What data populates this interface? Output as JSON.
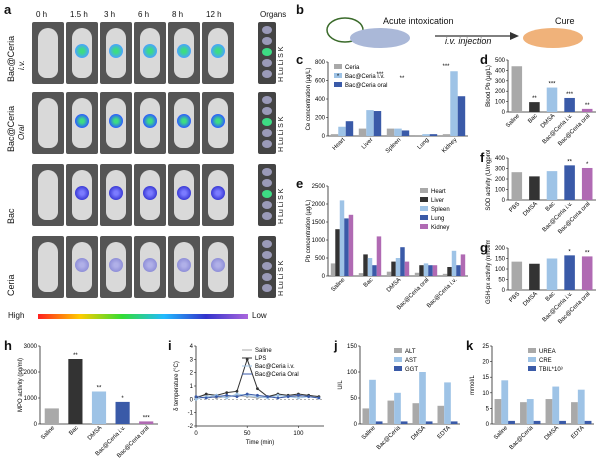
{
  "figure": {
    "panels": {
      "a": "a",
      "b": "b",
      "c": "c",
      "d": "d",
      "e": "e",
      "f": "f",
      "g": "g",
      "h": "h",
      "i": "i",
      "j": "j",
      "k": "k"
    },
    "panel_a": {
      "time_labels": [
        "0 h",
        "1.5 h",
        "3 h",
        "6 h",
        "8 h",
        "12 h",
        "Organs"
      ],
      "row_labels": [
        {
          "line1": "Bac@Ceria",
          "line2": "i.v."
        },
        {
          "line1": "Bac@Ceria",
          "line2": "Oral"
        },
        {
          "line1": "Bac",
          "line2": ""
        },
        {
          "line1": "Ceria",
          "line2": ""
        }
      ],
      "organ_labels": "H Lu Li S K",
      "scale_high": "High",
      "scale_low": "Low"
    },
    "panel_b": {
      "acute": "Acute intoxication",
      "iv": "i.v. injection",
      "cure": "Cure"
    }
  },
  "chart_data": [
    {
      "id": "c",
      "type": "bar",
      "ylabel": "Ce concentration (µg/L)",
      "ylim": [
        0,
        800
      ],
      "yticks": [
        0,
        200,
        400,
        600,
        800
      ],
      "categories": [
        "Heart",
        "Liver",
        "Spleen",
        "Lung",
        "Kidney"
      ],
      "series": [
        {
          "name": "Ceria",
          "values": [
            20,
            80,
            80,
            10,
            20
          ]
        },
        {
          "name": "Bac@Ceria i.v.",
          "values": [
            100,
            280,
            80,
            20,
            700
          ]
        },
        {
          "name": "Bac@Ceria oral",
          "values": [
            160,
            270,
            60,
            20,
            430
          ]
        }
      ],
      "colors": [
        "#a9a9a9",
        "#9ec3e6",
        "#3a5aa8"
      ],
      "annotations": [
        "*",
        "***",
        "**",
        "***"
      ]
    },
    {
      "id": "d",
      "type": "bar",
      "ylabel": "Blood Pb (µg/L)",
      "ylim": [
        0,
        500
      ],
      "yticks": [
        0,
        100,
        200,
        300,
        400,
        500
      ],
      "categories": [
        "Saline",
        "Bac",
        "DMSA",
        "Bac@Ceria i.v.",
        "Bac@Ceria oral"
      ],
      "values": [
        440,
        95,
        235,
        135,
        30
      ],
      "colors": [
        "#a9a9a9",
        "#333333",
        "#9ec3e6",
        "#3a5aa8",
        "#b06ab3"
      ],
      "annotations": [
        "",
        "**",
        "***",
        "***",
        "**"
      ]
    },
    {
      "id": "e",
      "type": "bar",
      "ylabel": "Pb concentration (µg/L)",
      "ylim": [
        0,
        2500
      ],
      "yticks": [
        0,
        500,
        1000,
        1500,
        2000,
        2500
      ],
      "categories": [
        "Saline",
        "Bac",
        "DMSA",
        "Bac@Ceria oral",
        "Bac@Ceria i.v."
      ],
      "series": [
        {
          "name": "Heart",
          "values": [
            350,
            80,
            120,
            90,
            60
          ]
        },
        {
          "name": "Liver",
          "values": [
            1300,
            600,
            400,
            300,
            250
          ]
        },
        {
          "name": "Spleen",
          "values": [
            2100,
            500,
            500,
            350,
            700
          ]
        },
        {
          "name": "Lung",
          "values": [
            1600,
            300,
            800,
            300,
            300
          ]
        },
        {
          "name": "Kidney",
          "values": [
            1700,
            1100,
            400,
            300,
            600
          ]
        }
      ],
      "colors": [
        "#a9a9a9",
        "#333333",
        "#9ec3e6",
        "#3a5aa8",
        "#b06ab3"
      ]
    },
    {
      "id": "f",
      "type": "bar",
      "ylabel": "SOD activity (U/mgprot)",
      "ylim": [
        0,
        400
      ],
      "yticks": [
        0,
        100,
        200,
        300,
        400
      ],
      "categories": [
        "PBS",
        "DMSA",
        "Bac",
        "Bac@Ceria i.v.",
        "Bac@Ceria oral"
      ],
      "values": [
        265,
        225,
        275,
        330,
        305
      ],
      "colors": [
        "#a9a9a9",
        "#333333",
        "#9ec3e6",
        "#3a5aa8",
        "#b06ab3"
      ],
      "annotations": [
        "",
        "",
        "",
        "**",
        "*"
      ]
    },
    {
      "id": "g",
      "type": "bar",
      "ylabel": "GSH-px activity (nmol/mg)",
      "ylim": [
        0,
        200
      ],
      "yticks": [
        0,
        50,
        100,
        150,
        200
      ],
      "categories": [
        "PBS",
        "DMSA",
        "Bac",
        "Bac@Ceria i.v.",
        "Bac@Ceria oral"
      ],
      "values": [
        135,
        125,
        150,
        165,
        160
      ],
      "colors": [
        "#a9a9a9",
        "#333333",
        "#9ec3e6",
        "#3a5aa8",
        "#b06ab3"
      ],
      "annotations": [
        "",
        "",
        "",
        "*",
        "**"
      ]
    },
    {
      "id": "h",
      "type": "bar",
      "ylabel": "MPO activity (pg/ml)",
      "ylim": [
        0,
        3000
      ],
      "yticks": [
        0,
        1000,
        2000,
        3000
      ],
      "categories": [
        "Saline",
        "Bac",
        "DMSA",
        "Bac@Ceria i.v.",
        "Bac@Ceria oral"
      ],
      "values": [
        600,
        2500,
        1250,
        850,
        100
      ],
      "colors": [
        "#a9a9a9",
        "#333333",
        "#9ec3e6",
        "#3a5aa8",
        "#b06ab3"
      ],
      "annotations": [
        "",
        "**",
        "**",
        "*",
        "***"
      ]
    },
    {
      "id": "i",
      "type": "line",
      "xlabel": "Time (min)",
      "ylabel": "δ temperature (°C)",
      "xlim": [
        0,
        125
      ],
      "ylim": [
        -2,
        4
      ],
      "xticks": [
        0,
        50,
        100
      ],
      "yticks": [
        -2,
        -1,
        0,
        1,
        2,
        3,
        4
      ],
      "x": [
        0,
        10,
        20,
        30,
        40,
        50,
        60,
        70,
        80,
        90,
        100,
        110,
        120
      ],
      "series": [
        {
          "name": "Saline",
          "values": [
            0.2,
            0.3,
            0.1,
            0.2,
            0.3,
            0.2,
            0.1,
            0.2,
            0.3,
            0.2,
            0.2,
            0.3,
            0.2
          ]
        },
        {
          "name": "LPS",
          "values": [
            0.1,
            0.4,
            0.3,
            0.5,
            0.6,
            3.0,
            0.8,
            0.2,
            0.4,
            0.3,
            0.4,
            0.3,
            0.2
          ]
        },
        {
          "name": "Bac@Ceria i.v.",
          "values": [
            0.0,
            0.2,
            0.3,
            0.1,
            0.4,
            0.3,
            0.2,
            0.1,
            0.3,
            0.2,
            0.1,
            0.2,
            0.1
          ]
        },
        {
          "name": "Bac@Ceria Oral",
          "values": [
            0.2,
            0.1,
            0.2,
            0.3,
            0.2,
            0.4,
            0.3,
            0.2,
            0.1,
            0.2,
            0.3,
            0.2,
            0.1
          ]
        }
      ],
      "colors": [
        "#a9a9a9",
        "#333333",
        "#9ec3e6",
        "#3a5aa8"
      ]
    },
    {
      "id": "j",
      "type": "bar",
      "ylabel": "U/L",
      "ylim": [
        0,
        150
      ],
      "yticks": [
        0,
        50,
        100,
        150
      ],
      "categories": [
        "Saline",
        "Bac@Ceria",
        "DMSA",
        "EDTA"
      ],
      "series": [
        {
          "name": "ALT",
          "values": [
            30,
            45,
            40,
            35
          ]
        },
        {
          "name": "AST",
          "values": [
            85,
            60,
            100,
            80
          ]
        },
        {
          "name": "GGT",
          "values": [
            5,
            5,
            5,
            5
          ]
        }
      ],
      "colors": [
        "#a9a9a9",
        "#9ec3e6",
        "#3a5aa8"
      ]
    },
    {
      "id": "k",
      "type": "bar",
      "ylabel": "mmol/L",
      "ylim": [
        0,
        25
      ],
      "yticks": [
        0,
        5,
        10,
        15,
        20,
        25
      ],
      "categories": [
        "Saline",
        "Bac@Ceria",
        "DMSA",
        "EDTA"
      ],
      "series": [
        {
          "name": "UREA",
          "values": [
            8,
            7,
            8,
            7
          ]
        },
        {
          "name": "CRE",
          "values": [
            14,
            8,
            12,
            11
          ]
        },
        {
          "name": "TBIL*10³",
          "values": [
            1,
            1,
            1,
            1
          ]
        }
      ],
      "colors": [
        "#a9a9a9",
        "#9ec3e6",
        "#3a5aa8"
      ]
    }
  ]
}
